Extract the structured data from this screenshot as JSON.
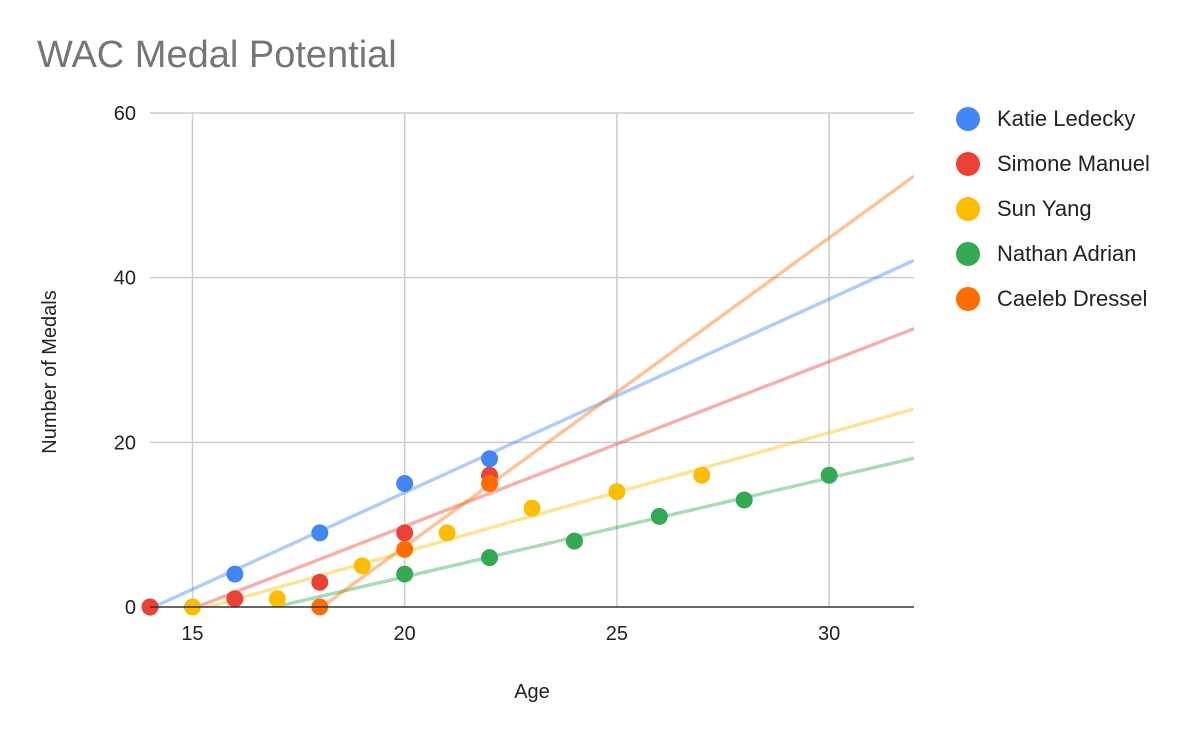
{
  "chart_data": {
    "type": "scatter",
    "title": "WAC Medal Potential",
    "xlabel": "Age",
    "ylabel": "Number of Medals",
    "xlim": [
      14,
      32
    ],
    "ylim": [
      0,
      60
    ],
    "x_ticks": [
      "15",
      "20",
      "25",
      "30"
    ],
    "y_ticks": [
      "0",
      "20",
      "40",
      "60"
    ],
    "grid": true,
    "trendlines": true,
    "legend_position": "right",
    "series": [
      {
        "name": "Katie Ledecky",
        "color": "#4285f4",
        "points": [
          [
            14,
            0
          ],
          [
            16,
            4
          ],
          [
            18,
            9
          ],
          [
            20,
            15
          ],
          [
            22,
            18
          ]
        ]
      },
      {
        "name": "Simone Manuel",
        "color": "#ea4335",
        "points": [
          [
            14,
            0
          ],
          [
            16,
            1
          ],
          [
            18,
            3
          ],
          [
            20,
            9
          ],
          [
            22,
            16
          ]
        ]
      },
      {
        "name": "Sun Yang",
        "color": "#fbbc04",
        "points": [
          [
            15,
            0
          ],
          [
            17,
            1
          ],
          [
            19,
            5
          ],
          [
            21,
            9
          ],
          [
            23,
            12
          ],
          [
            25,
            14
          ],
          [
            27,
            16
          ]
        ]
      },
      {
        "name": "Nathan Adrian",
        "color": "#34a853",
        "points": [
          [
            20,
            4
          ],
          [
            22,
            6
          ],
          [
            24,
            8
          ],
          [
            26,
            11
          ],
          [
            28,
            13
          ],
          [
            30,
            16
          ]
        ]
      },
      {
        "name": "Caeleb Dressel",
        "color": "#ff6d01",
        "points": [
          [
            18,
            0
          ],
          [
            20,
            7
          ],
          [
            22,
            15
          ]
        ]
      }
    ]
  }
}
